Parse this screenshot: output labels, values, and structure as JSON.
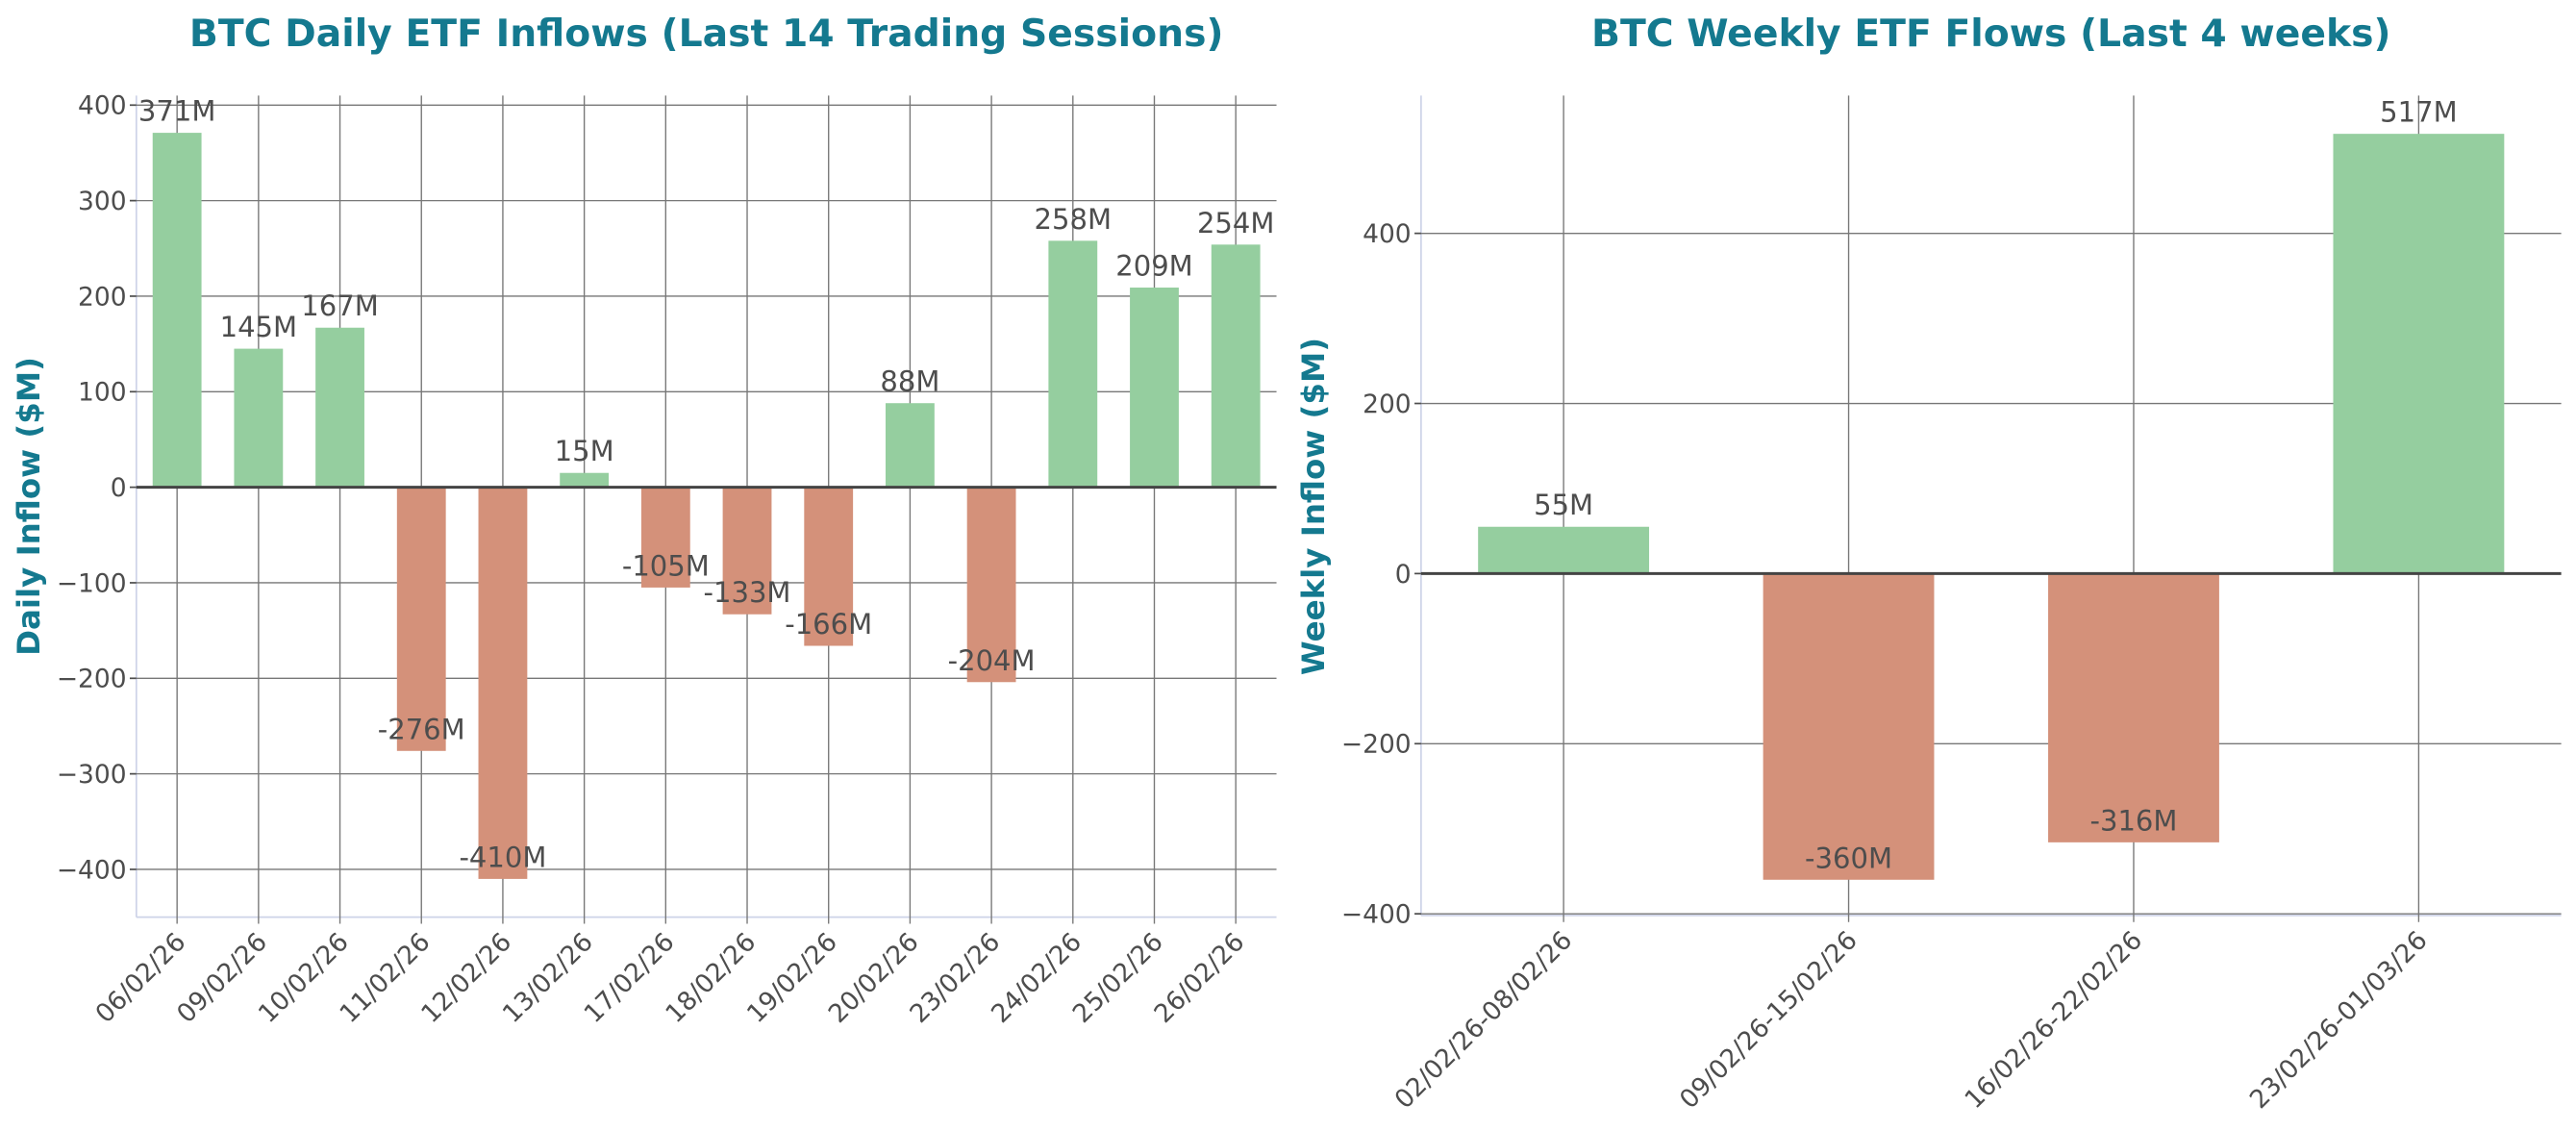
{
  "colors": {
    "positive": "#95ce9f",
    "negative": "#d4917a",
    "title": "#14798f",
    "text": "#4d4d4d"
  },
  "chart_data": [
    {
      "type": "bar",
      "title": "BTC Daily ETF Inflows (Last 14 Trading Sessions)",
      "xlabel": "",
      "ylabel": "Daily Inflow ($M)",
      "categories": [
        "06/02/26",
        "09/02/26",
        "10/02/26",
        "11/02/26",
        "12/02/26",
        "13/02/26",
        "17/02/26",
        "18/02/26",
        "19/02/26",
        "20/02/26",
        "23/02/26",
        "24/02/26",
        "25/02/26",
        "26/02/26"
      ],
      "values": [
        371,
        145,
        167,
        -276,
        -410,
        15,
        -105,
        -133,
        -166,
        88,
        -204,
        258,
        209,
        254
      ],
      "data_labels": [
        "371M",
        "145M",
        "167M",
        "-276M",
        "-410M",
        "15M",
        "-105M",
        "-133M",
        "-166M",
        "88M",
        "-204M",
        "258M",
        "209M",
        "254M"
      ],
      "yticks": [
        400,
        300,
        200,
        100,
        0,
        -100,
        -200,
        -300,
        -400
      ],
      "ytick_labels": [
        "400",
        "300",
        "200",
        "100",
        "0",
        "−100",
        "−200",
        "−300",
        "−400"
      ],
      "ylim": [
        -450,
        410
      ],
      "grid": true
    },
    {
      "type": "bar",
      "title": "BTC Weekly ETF Flows (Last 4 weeks)",
      "xlabel": "",
      "ylabel": "Weekly Inflow ($M)",
      "categories": [
        "02/02/26-08/02/26",
        "09/02/26-15/02/26",
        "16/02/26-22/02/26",
        "23/02/26-01/03/26"
      ],
      "values": [
        55,
        -360,
        -316,
        517
      ],
      "data_labels": [
        "55M",
        "-360M",
        "-316M",
        "517M"
      ],
      "yticks": [
        400,
        200,
        0,
        -200,
        -400
      ],
      "ytick_labels": [
        "400",
        "200",
        "0",
        "−200",
        "−400"
      ],
      "ylim": [
        -402,
        562
      ],
      "grid": true
    }
  ]
}
